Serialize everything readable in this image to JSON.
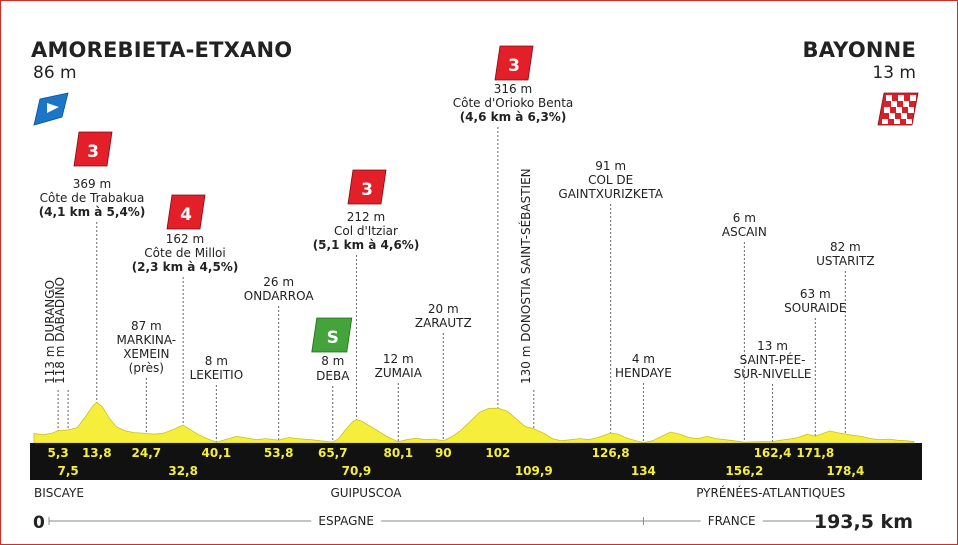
{
  "start": {
    "name": "AMOREBIETA-ETXANO",
    "altitude": "86 m"
  },
  "finish": {
    "name": "BAYONNE",
    "altitude": "13 m"
  },
  "climbs": [
    {
      "category": "3",
      "altitude": "369 m",
      "name": "Côte de Trabakua",
      "detail": "(4,1 km à 5,4%)",
      "km": 13.8
    },
    {
      "category": "4",
      "altitude": "162 m",
      "name": "Côte de Milloi",
      "detail": "(2,3 km à 4,5%)",
      "km": 32.8
    },
    {
      "category": "3",
      "altitude": "212 m",
      "name": "Col d'Itziar",
      "detail": "(5,1 km à 4,6%)",
      "km": 70.9
    },
    {
      "category": "3",
      "altitude": "316 m",
      "name": "Côte d'Orioko Benta",
      "detail": "(4,6 km à 6,3%)",
      "km": 102
    }
  ],
  "sprint": {
    "label": "S",
    "altitude": "8 m",
    "name": "DEBA",
    "km": 65.7
  },
  "waypoints_horizontal": [
    {
      "lines": [
        "87 m",
        "MARKINA-",
        "XEMEIN",
        "(près)"
      ],
      "km": 24.7
    },
    {
      "lines": [
        "8 m",
        "LEKEITIO"
      ],
      "km": 40.1
    },
    {
      "lines": [
        "26 m",
        "ONDARROA"
      ],
      "km": 53.8
    },
    {
      "lines": [
        "12 m",
        "ZUMAIA"
      ],
      "km": 80.1
    },
    {
      "lines": [
        "20 m",
        "ZARAUTZ"
      ],
      "km": 90
    },
    {
      "lines": [
        "91 m",
        "COL DE",
        "GAINTXURIZKETA"
      ],
      "km": 126.8
    },
    {
      "lines": [
        "4 m",
        "HENDAYE"
      ],
      "km": 134
    },
    {
      "lines": [
        "6 m",
        "ASCAIN"
      ],
      "km": 156.2
    },
    {
      "lines": [
        "13 m",
        "SAINT-PÉE-",
        "SUR-NIVELLE"
      ],
      "km": 162.4
    },
    {
      "lines": [
        "63 m",
        "SOURAIDE"
      ],
      "km": 171.8
    },
    {
      "lines": [
        "82 m",
        "USTARITZ"
      ],
      "km": 178.4
    }
  ],
  "waypoints_vertical": [
    {
      "text": "113 m DURANGO",
      "km": 5.3
    },
    {
      "text": "118 m DABADIÑO",
      "km": 7.5
    },
    {
      "text": "130 m DONOSTIA SAINT-SÉBASTIEN",
      "km": 109.9
    }
  ],
  "km_marks": [
    {
      "label": "5,3",
      "km": 5.3,
      "row": "top"
    },
    {
      "label": "7,5",
      "km": 7.5,
      "row": "bottom"
    },
    {
      "label": "13,8",
      "km": 13.8,
      "row": "top"
    },
    {
      "label": "24,7",
      "km": 24.7,
      "row": "top"
    },
    {
      "label": "32,8",
      "km": 32.8,
      "row": "bottom"
    },
    {
      "label": "40,1",
      "km": 40.1,
      "row": "top"
    },
    {
      "label": "53,8",
      "km": 53.8,
      "row": "top"
    },
    {
      "label": "65,7",
      "km": 65.7,
      "row": "top"
    },
    {
      "label": "70,9",
      "km": 70.9,
      "row": "bottom"
    },
    {
      "label": "80,1",
      "km": 80.1,
      "row": "top"
    },
    {
      "label": "90",
      "km": 90,
      "row": "top"
    },
    {
      "label": "102",
      "km": 102,
      "row": "top"
    },
    {
      "label": "109,9",
      "km": 109.9,
      "row": "bottom"
    },
    {
      "label": "126,8",
      "km": 126.8,
      "row": "top"
    },
    {
      "label": "134",
      "km": 134,
      "row": "bottom"
    },
    {
      "label": "156,2",
      "km": 156.2,
      "row": "bottom"
    },
    {
      "label": "162,4",
      "km": 162.4,
      "row": "top"
    },
    {
      "label": "171,8",
      "km": 171.8,
      "row": "top"
    },
    {
      "label": "178,4",
      "km": 178.4,
      "row": "bottom"
    }
  ],
  "regions": [
    {
      "name": "BISCAYE",
      "align": "start",
      "km": 0
    },
    {
      "name": "GUIPUSCOA",
      "align": "center",
      "km": 73
    },
    {
      "name": "PYRÉNÉES-ATLANTIQUES",
      "align": "center",
      "km": 162
    }
  ],
  "countries": [
    {
      "name": "ESPAGNE",
      "from_km": 0,
      "to_km": 134
    },
    {
      "name": "FRANCE",
      "from_km": 134,
      "to_km": 193.5
    }
  ],
  "distance": {
    "start_label": "0",
    "end_label": "193,5 km",
    "total_km": 193.5
  },
  "profile": [
    [
      0,
      86
    ],
    [
      2,
      75
    ],
    [
      4,
      90
    ],
    [
      5.3,
      113
    ],
    [
      7.5,
      118
    ],
    [
      9.5,
      140
    ],
    [
      11.5,
      250
    ],
    [
      13,
      340
    ],
    [
      13.8,
      369
    ],
    [
      15,
      330
    ],
    [
      16.5,
      230
    ],
    [
      18,
      150
    ],
    [
      20,
      110
    ],
    [
      22,
      95
    ],
    [
      24.7,
      87
    ],
    [
      26.5,
      80
    ],
    [
      28.5,
      90
    ],
    [
      30.5,
      120
    ],
    [
      32,
      150
    ],
    [
      32.8,
      162
    ],
    [
      34,
      130
    ],
    [
      36,
      80
    ],
    [
      38,
      40
    ],
    [
      40.1,
      8
    ],
    [
      42,
      30
    ],
    [
      44.5,
      60
    ],
    [
      47,
      45
    ],
    [
      49,
      30
    ],
    [
      51,
      40
    ],
    [
      53.8,
      26
    ],
    [
      56,
      50
    ],
    [
      58,
      40
    ],
    [
      61,
      30
    ],
    [
      63,
      20
    ],
    [
      65.7,
      8
    ],
    [
      67,
      40
    ],
    [
      68.5,
      120
    ],
    [
      70,
      190
    ],
    [
      70.9,
      212
    ],
    [
      72,
      200
    ],
    [
      74,
      150
    ],
    [
      76,
      100
    ],
    [
      78,
      50
    ],
    [
      80.1,
      12
    ],
    [
      82,
      30
    ],
    [
      84,
      45
    ],
    [
      86,
      30
    ],
    [
      88,
      35
    ],
    [
      90,
      20
    ],
    [
      92,
      60
    ],
    [
      94,
      120
    ],
    [
      96,
      200
    ],
    [
      98,
      280
    ],
    [
      100,
      315
    ],
    [
      102,
      316
    ],
    [
      104,
      290
    ],
    [
      106,
      220
    ],
    [
      108,
      150
    ],
    [
      109.9,
      130
    ],
    [
      112,
      90
    ],
    [
      114,
      40
    ],
    [
      116,
      20
    ],
    [
      118,
      30
    ],
    [
      120,
      40
    ],
    [
      122,
      30
    ],
    [
      124,
      50
    ],
    [
      126.8,
      91
    ],
    [
      128.5,
      80
    ],
    [
      130,
      50
    ],
    [
      132,
      25
    ],
    [
      134,
      4
    ],
    [
      136,
      20
    ],
    [
      138,
      60
    ],
    [
      140,
      100
    ],
    [
      142,
      80
    ],
    [
      144,
      50
    ],
    [
      146,
      40
    ],
    [
      148,
      60
    ],
    [
      150,
      40
    ],
    [
      152,
      30
    ],
    [
      154,
      20
    ],
    [
      156.2,
      6
    ],
    [
      158,
      10
    ],
    [
      160,
      12
    ],
    [
      162.4,
      13
    ],
    [
      164,
      25
    ],
    [
      166,
      35
    ],
    [
      168,
      50
    ],
    [
      170,
      80
    ],
    [
      171.8,
      63
    ],
    [
      173,
      80
    ],
    [
      175,
      110
    ],
    [
      176.5,
      95
    ],
    [
      178.4,
      82
    ],
    [
      180,
      70
    ],
    [
      182,
      60
    ],
    [
      184,
      40
    ],
    [
      186,
      30
    ],
    [
      188,
      35
    ],
    [
      190,
      25
    ],
    [
      192,
      20
    ],
    [
      193.5,
      13
    ]
  ],
  "colors": {
    "profile_fill": "#f5ef3c",
    "band": "#111111",
    "km_text": "#f5ef3c",
    "climb_badge": "#e3202a",
    "sprint_badge": "#44a33a",
    "start_flag": "#1b76c7",
    "finish_flag": "#d8202a",
    "frame": "#c9302c"
  },
  "icons": {
    "start": "start-flag-icon",
    "finish": "checkered-flag-icon"
  }
}
